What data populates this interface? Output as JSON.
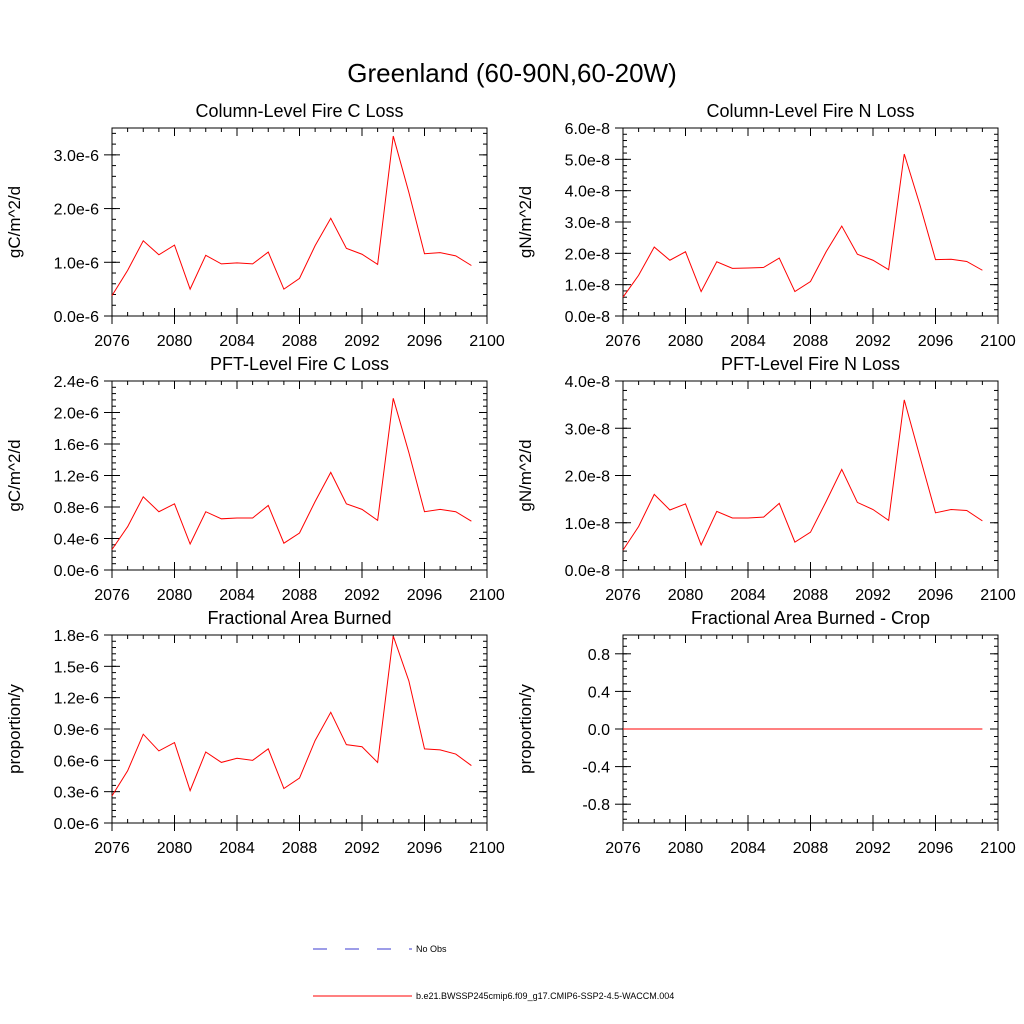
{
  "figure": {
    "title": "Greenland (60-90N,60-20W)"
  },
  "legend": {
    "placement": "bottom-center",
    "entries": [
      {
        "label": "No Obs",
        "color": "#3b3bd0",
        "style": "dashed"
      },
      {
        "label": "b.e21.BWSSP245cmip6.f09_g17.CMIP6-SSP2-4.5-WACCM.004",
        "color": "#ff0000",
        "style": "solid"
      }
    ]
  },
  "colors": {
    "series": "#ff0000",
    "axis": "#000000"
  },
  "chart_data": [
    {
      "type": "line",
      "title": "Column-Level Fire C Loss",
      "ylabel": "gC/m^2/d",
      "xlim": [
        2076,
        2100
      ],
      "ylim": [
        0,
        3.5e-06
      ],
      "x_ticks": [
        2076,
        2080,
        2084,
        2088,
        2092,
        2096,
        2100
      ],
      "x_tick_labels": [
        "2076",
        "2080",
        "2084",
        "2088",
        "2092",
        "2096",
        "2100"
      ],
      "y_ticks": [
        0,
        1e-06,
        2e-06,
        3e-06
      ],
      "y_tick_labels": [
        "0.0e-6",
        "1.0e-6",
        "2.0e-6",
        "3.0e-6"
      ],
      "x": [
        2076,
        2077,
        2078,
        2079,
        2080,
        2081,
        2082,
        2083,
        2084,
        2085,
        2086,
        2087,
        2088,
        2089,
        2090,
        2091,
        2092,
        2093,
        2094,
        2095,
        2096,
        2097,
        2098,
        2099
      ],
      "series": [
        {
          "name": "b.e21.BWSSP245cmip6.f09_g17.CMIP6-SSP2-4.5-WACCM.004",
          "values": [
            3.8e-07,
            8.5e-07,
            1.4e-06,
            1.14e-06,
            1.32e-06,
            5e-07,
            1.13e-06,
            9.7e-07,
            9.9e-07,
            9.7e-07,
            1.19e-06,
            5e-07,
            7e-07,
            1.31e-06,
            1.82e-06,
            1.26e-06,
            1.15e-06,
            9.6e-07,
            3.35e-06,
            2.3e-06,
            1.16e-06,
            1.18e-06,
            1.12e-06,
            9.4e-07
          ]
        }
      ]
    },
    {
      "type": "line",
      "title": "Column-Level Fire N Loss",
      "ylabel": "gN/m^2/d",
      "xlim": [
        2076,
        2100
      ],
      "ylim": [
        0,
        6e-08
      ],
      "x_ticks": [
        2076,
        2080,
        2084,
        2088,
        2092,
        2096,
        2100
      ],
      "x_tick_labels": [
        "2076",
        "2080",
        "2084",
        "2088",
        "2092",
        "2096",
        "2100"
      ],
      "y_ticks": [
        0,
        1e-08,
        2e-08,
        3e-08,
        4e-08,
        5e-08,
        6e-08
      ],
      "y_tick_labels": [
        "0.0e-8",
        "1.0e-8",
        "2.0e-8",
        "3.0e-8",
        "4.0e-8",
        "5.0e-8",
        "6.0e-8"
      ],
      "x": [
        2076,
        2077,
        2078,
        2079,
        2080,
        2081,
        2082,
        2083,
        2084,
        2085,
        2086,
        2087,
        2088,
        2089,
        2090,
        2091,
        2092,
        2093,
        2094,
        2095,
        2096,
        2097,
        2098,
        2099
      ],
      "series": [
        {
          "name": "b.e21.BWSSP245cmip6.f09_g17.CMIP6-SSP2-4.5-WACCM.004",
          "values": [
            6e-09,
            1.3e-08,
            2.2e-08,
            1.78e-08,
            2.05e-08,
            7.8e-09,
            1.73e-08,
            1.52e-08,
            1.53e-08,
            1.55e-08,
            1.85e-08,
            7.8e-09,
            1.1e-08,
            2.05e-08,
            2.87e-08,
            1.97e-08,
            1.78e-08,
            1.48e-08,
            5.17e-08,
            3.55e-08,
            1.8e-08,
            1.81e-08,
            1.74e-08,
            1.46e-08
          ]
        }
      ]
    },
    {
      "type": "line",
      "title": "PFT-Level Fire C Loss",
      "ylabel": "gC/m^2/d",
      "xlim": [
        2076,
        2100
      ],
      "ylim": [
        0,
        2.4e-06
      ],
      "x_ticks": [
        2076,
        2080,
        2084,
        2088,
        2092,
        2096,
        2100
      ],
      "x_tick_labels": [
        "2076",
        "2080",
        "2084",
        "2088",
        "2092",
        "2096",
        "2100"
      ],
      "y_ticks": [
        0,
        4e-07,
        8e-07,
        1.2e-06,
        1.6e-06,
        2e-06,
        2.4e-06
      ],
      "y_tick_labels": [
        "0.0e-6",
        "0.4e-6",
        "0.8e-6",
        "1.2e-6",
        "1.6e-6",
        "2.0e-6",
        "2.4e-6"
      ],
      "x": [
        2076,
        2077,
        2078,
        2079,
        2080,
        2081,
        2082,
        2083,
        2084,
        2085,
        2086,
        2087,
        2088,
        2089,
        2090,
        2091,
        2092,
        2093,
        2094,
        2095,
        2096,
        2097,
        2098,
        2099
      ],
      "series": [
        {
          "name": "b.e21.BWSSP245cmip6.f09_g17.CMIP6-SSP2-4.5-WACCM.004",
          "values": [
            2.6e-07,
            5.5e-07,
            9.3e-07,
            7.4e-07,
            8.4e-07,
            3.3e-07,
            7.4e-07,
            6.5e-07,
            6.6e-07,
            6.6e-07,
            8.2e-07,
            3.4e-07,
            4.7e-07,
            8.7e-07,
            1.24e-06,
            8.4e-07,
            7.7e-07,
            6.3e-07,
            2.18e-06,
            1.49e-06,
            7.4e-07,
            7.7e-07,
            7.4e-07,
            6.2e-07
          ]
        }
      ]
    },
    {
      "type": "line",
      "title": "PFT-Level Fire N Loss",
      "ylabel": "gN/m^2/d",
      "xlim": [
        2076,
        2100
      ],
      "ylim": [
        0,
        4e-08
      ],
      "x_ticks": [
        2076,
        2080,
        2084,
        2088,
        2092,
        2096,
        2100
      ],
      "x_tick_labels": [
        "2076",
        "2080",
        "2084",
        "2088",
        "2092",
        "2096",
        "2100"
      ],
      "y_ticks": [
        0,
        1e-08,
        2e-08,
        3e-08,
        4e-08
      ],
      "y_tick_labels": [
        "0.0e-8",
        "1.0e-8",
        "2.0e-8",
        "3.0e-8",
        "4.0e-8"
      ],
      "x": [
        2076,
        2077,
        2078,
        2079,
        2080,
        2081,
        2082,
        2083,
        2084,
        2085,
        2086,
        2087,
        2088,
        2089,
        2090,
        2091,
        2092,
        2093,
        2094,
        2095,
        2096,
        2097,
        2098,
        2099
      ],
      "series": [
        {
          "name": "b.e21.BWSSP245cmip6.f09_g17.CMIP6-SSP2-4.5-WACCM.004",
          "values": [
            4.2e-09,
            9.2e-09,
            1.6e-08,
            1.27e-08,
            1.4e-08,
            5.3e-09,
            1.24e-08,
            1.1e-08,
            1.1e-08,
            1.12e-08,
            1.41e-08,
            5.9e-09,
            8e-09,
            1.45e-08,
            2.13e-08,
            1.43e-08,
            1.28e-08,
            1.05e-08,
            3.6e-08,
            2.4e-08,
            1.21e-08,
            1.28e-08,
            1.26e-08,
            1.04e-08
          ]
        }
      ]
    },
    {
      "type": "line",
      "title": "Fractional Area Burned",
      "ylabel": "proportion/y",
      "xlim": [
        2076,
        2100
      ],
      "ylim": [
        0,
        1.8e-06
      ],
      "x_ticks": [
        2076,
        2080,
        2084,
        2088,
        2092,
        2096,
        2100
      ],
      "x_tick_labels": [
        "2076",
        "2080",
        "2084",
        "2088",
        "2092",
        "2096",
        "2100"
      ],
      "y_ticks": [
        0,
        3e-07,
        6e-07,
        9e-07,
        1.2e-06,
        1.5e-06,
        1.8e-06
      ],
      "y_tick_labels": [
        "0.0e-6",
        "0.3e-6",
        "0.6e-6",
        "0.9e-6",
        "1.2e-6",
        "1.5e-6",
        "1.8e-6"
      ],
      "x": [
        2076,
        2077,
        2078,
        2079,
        2080,
        2081,
        2082,
        2083,
        2084,
        2085,
        2086,
        2087,
        2088,
        2089,
        2090,
        2091,
        2092,
        2093,
        2094,
        2095,
        2096,
        2097,
        2098,
        2099
      ],
      "series": [
        {
          "name": "b.e21.BWSSP245cmip6.f09_g17.CMIP6-SSP2-4.5-WACCM.004",
          "values": [
            2.6e-07,
            5e-07,
            8.5e-07,
            6.9e-07,
            7.7e-07,
            3.1e-07,
            6.8e-07,
            5.8e-07,
            6.2e-07,
            6e-07,
            7.1e-07,
            3.3e-07,
            4.3e-07,
            7.9e-07,
            1.06e-06,
            7.5e-07,
            7.3e-07,
            5.8e-07,
            1.79e-06,
            1.36e-06,
            7.1e-07,
            7e-07,
            6.6e-07,
            5.5e-07
          ]
        }
      ]
    },
    {
      "type": "line",
      "title": "Fractional Area Burned - Crop",
      "ylabel": "proportion/y",
      "xlim": [
        2076,
        2100
      ],
      "ylim": [
        -1.0,
        1.0
      ],
      "x_ticks": [
        2076,
        2080,
        2084,
        2088,
        2092,
        2096,
        2100
      ],
      "x_tick_labels": [
        "2076",
        "2080",
        "2084",
        "2088",
        "2092",
        "2096",
        "2100"
      ],
      "y_ticks": [
        -0.8,
        -0.4,
        0,
        0.4,
        0.8
      ],
      "y_tick_labels": [
        "-0.8",
        "-0.4",
        "0.0",
        "0.4",
        "0.8"
      ],
      "x": [
        2076,
        2077,
        2078,
        2079,
        2080,
        2081,
        2082,
        2083,
        2084,
        2085,
        2086,
        2087,
        2088,
        2089,
        2090,
        2091,
        2092,
        2093,
        2094,
        2095,
        2096,
        2097,
        2098,
        2099
      ],
      "series": [
        {
          "name": "b.e21.BWSSP245cmip6.f09_g17.CMIP6-SSP2-4.5-WACCM.004",
          "values": [
            0,
            0,
            0,
            0,
            0,
            0,
            0,
            0,
            0,
            0,
            0,
            0,
            0,
            0,
            0,
            0,
            0,
            0,
            0,
            0,
            0,
            0,
            0,
            0
          ]
        }
      ]
    }
  ]
}
